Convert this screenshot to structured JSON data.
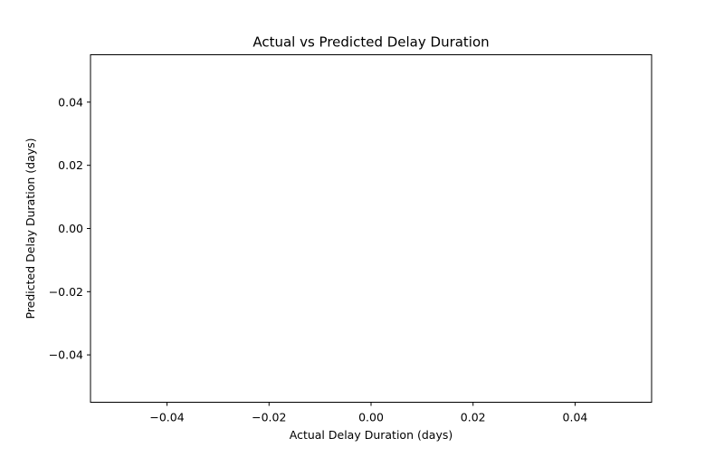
{
  "chart_data": {
    "type": "scatter",
    "title": "Actual vs Predicted Delay Duration",
    "xlabel": "Actual Delay Duration (days)",
    "ylabel": "Predicted Delay Duration (days)",
    "xlim": [
      -0.055,
      0.055
    ],
    "ylim": [
      -0.055,
      0.055
    ],
    "x_ticks": [
      -0.04,
      -0.02,
      0.0,
      0.02,
      0.04
    ],
    "x_tick_labels": [
      "−0.04",
      "−0.02",
      "0.00",
      "0.02",
      "0.04"
    ],
    "y_ticks": [
      -0.04,
      -0.02,
      0.0,
      0.02,
      0.04
    ],
    "y_tick_labels": [
      "−0.04",
      "−0.02",
      "0.00",
      "0.02",
      "0.04"
    ],
    "grid": false,
    "series": [
      {
        "x": [],
        "y": []
      }
    ]
  }
}
